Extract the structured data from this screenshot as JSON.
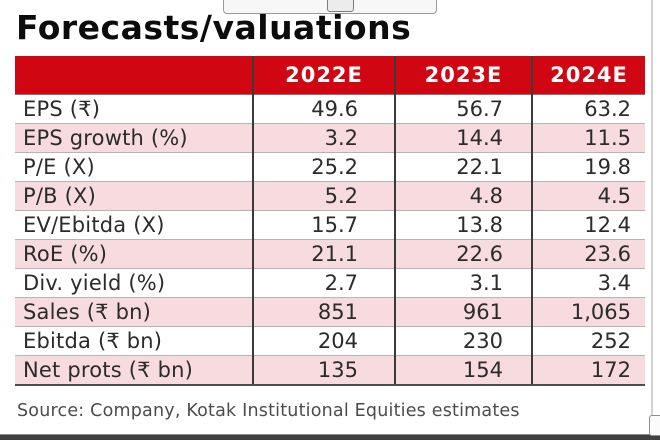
{
  "page": {
    "title": "Forecasts/valuations",
    "source": "Source: Company, Kotak Institutional Equities estimates"
  },
  "colors": {
    "header_red": "#d00613",
    "row_pink": "#f7dbdf",
    "header_text": "#ffffff",
    "body_text": "#2b2b2b",
    "source_text": "#4c4c4c"
  },
  "chart_data": {
    "type": "table",
    "title": "Forecasts/valuations",
    "columns": [
      "",
      "2022E",
      "2023E",
      "2024E"
    ],
    "rows": [
      {
        "label": "EPS (₹)",
        "values": [
          "49.6",
          "56.7",
          "63.2"
        ]
      },
      {
        "label": "EPS growth (%)",
        "values": [
          "3.2",
          "14.4",
          "11.5"
        ]
      },
      {
        "label": "P/E (X)",
        "values": [
          "25.2",
          "22.1",
          "19.8"
        ]
      },
      {
        "label": "P/B (X)",
        "values": [
          "5.2",
          "4.8",
          "4.5"
        ]
      },
      {
        "label": "EV/Ebitda (X)",
        "values": [
          "15.7",
          "13.8",
          "12.4"
        ]
      },
      {
        "label": "RoE (%)",
        "values": [
          "21.1",
          "22.6",
          "23.6"
        ]
      },
      {
        "label": "Div. yield (%)",
        "values": [
          "2.7",
          "3.1",
          "3.4"
        ]
      },
      {
        "label": "Sales (₹ bn)",
        "values": [
          "851",
          "961",
          "1,065"
        ]
      },
      {
        "label": "Ebitda (₹ bn)",
        "values": [
          "204",
          "230",
          "252"
        ]
      },
      {
        "label": "Net prots (₹ bn)",
        "values": [
          "135",
          "154",
          "172"
        ]
      }
    ],
    "source": "Source: Company, Kotak Institutional Equities estimates"
  }
}
